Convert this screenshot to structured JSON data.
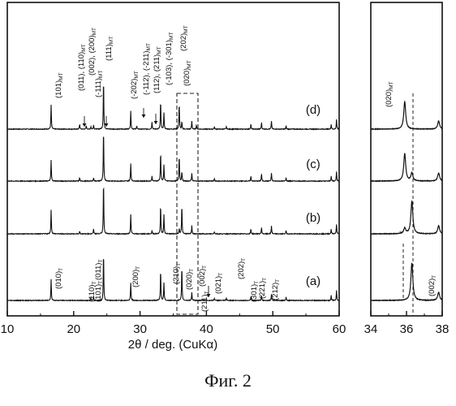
{
  "caption": "Фиг. 2",
  "chart_data": [
    {
      "type": "line",
      "panel": "main",
      "xlabel": "2θ / deg. (CuKα)",
      "ylabel": "",
      "xlim": [
        10,
        60
      ],
      "xticks": [
        10,
        20,
        30,
        40,
        50,
        60
      ],
      "grid": false,
      "series": [
        {
          "name": "(d)",
          "peaks": [
            {
              "x": 16.6,
              "h": 30
            },
            {
              "x": 20.9,
              "h": 6
            },
            {
              "x": 21.9,
              "h": 4
            },
            {
              "x": 22.6,
              "h": 3
            },
            {
              "x": 23.0,
              "h": 5
            },
            {
              "x": 24.5,
              "h": 62
            },
            {
              "x": 28.6,
              "h": 22
            },
            {
              "x": 29.5,
              "h": 4
            },
            {
              "x": 31.8,
              "h": 9
            },
            {
              "x": 33.1,
              "h": 35
            },
            {
              "x": 33.6,
              "h": 20
            },
            {
              "x": 35.9,
              "h": 32
            },
            {
              "x": 36.3,
              "h": 9
            },
            {
              "x": 37.8,
              "h": 10
            },
            {
              "x": 38.5,
              "h": 5
            },
            {
              "x": 41.2,
              "h": 3
            },
            {
              "x": 43.0,
              "h": 3
            },
            {
              "x": 46.7,
              "h": 6
            },
            {
              "x": 48.3,
              "h": 8
            },
            {
              "x": 49.8,
              "h": 10
            },
            {
              "x": 52.0,
              "h": 4
            },
            {
              "x": 58.8,
              "h": 6
            },
            {
              "x": 59.6,
              "h": 12
            }
          ]
        },
        {
          "name": "(c)",
          "peaks": [
            {
              "x": 16.6,
              "h": 26
            },
            {
              "x": 20.9,
              "h": 4
            },
            {
              "x": 23.0,
              "h": 4
            },
            {
              "x": 24.5,
              "h": 64
            },
            {
              "x": 28.6,
              "h": 22
            },
            {
              "x": 31.8,
              "h": 6
            },
            {
              "x": 33.1,
              "h": 36
            },
            {
              "x": 33.6,
              "h": 20
            },
            {
              "x": 35.9,
              "h": 32
            },
            {
              "x": 36.3,
              "h": 12
            },
            {
              "x": 37.8,
              "h": 10
            },
            {
              "x": 41.2,
              "h": 3
            },
            {
              "x": 46.7,
              "h": 6
            },
            {
              "x": 48.3,
              "h": 9
            },
            {
              "x": 49.8,
              "h": 10
            },
            {
              "x": 52.0,
              "h": 4
            },
            {
              "x": 58.8,
              "h": 6
            },
            {
              "x": 59.6,
              "h": 12
            }
          ]
        },
        {
          "name": "(b)",
          "peaks": [
            {
              "x": 16.6,
              "h": 30
            },
            {
              "x": 20.9,
              "h": 3
            },
            {
              "x": 23.0,
              "h": 6
            },
            {
              "x": 24.5,
              "h": 66
            },
            {
              "x": 28.6,
              "h": 24
            },
            {
              "x": 31.8,
              "h": 4
            },
            {
              "x": 33.1,
              "h": 36
            },
            {
              "x": 33.6,
              "h": 24
            },
            {
              "x": 35.9,
              "h": 6
            },
            {
              "x": 36.3,
              "h": 36
            },
            {
              "x": 37.8,
              "h": 10
            },
            {
              "x": 41.2,
              "h": 3
            },
            {
              "x": 46.7,
              "h": 6
            },
            {
              "x": 48.3,
              "h": 8
            },
            {
              "x": 49.8,
              "h": 10
            },
            {
              "x": 52.0,
              "h": 4
            },
            {
              "x": 58.8,
              "h": 6
            },
            {
              "x": 59.6,
              "h": 12
            }
          ]
        },
        {
          "name": "(a)",
          "peaks": [
            {
              "x": 16.6,
              "h": 26
            },
            {
              "x": 22.6,
              "h": 3
            },
            {
              "x": 23.0,
              "h": 4
            },
            {
              "x": 24.5,
              "h": 60
            },
            {
              "x": 28.6,
              "h": 22
            },
            {
              "x": 33.1,
              "h": 38
            },
            {
              "x": 33.6,
              "h": 22
            },
            {
              "x": 36.3,
              "h": 42
            },
            {
              "x": 37.8,
              "h": 10
            },
            {
              "x": 41.2,
              "h": 3
            },
            {
              "x": 43.0,
              "h": 3
            },
            {
              "x": 46.7,
              "h": 5
            },
            {
              "x": 48.3,
              "h": 6
            },
            {
              "x": 49.8,
              "h": 8
            },
            {
              "x": 52.0,
              "h": 4
            },
            {
              "x": 58.8,
              "h": 6
            },
            {
              "x": 59.6,
              "h": 12
            }
          ]
        }
      ],
      "annotations": [
        {
          "main": "(101)",
          "sub": "MT",
          "x": 16.6
        },
        {
          "main": "(011), (110)",
          "sub": "MT",
          "x": 20.9
        },
        {
          "main": "(002), (200)",
          "sub": "MT",
          "x": 22.6
        },
        {
          "main": "(-111)",
          "sub": "MT",
          "x": 23.0
        },
        {
          "main": "(111)",
          "sub": "MT",
          "x": 24.5
        },
        {
          "main": "(-202)",
          "sub": "MT",
          "x": 28.6
        },
        {
          "main": "(-112), (-211)",
          "sub": "MT",
          "x": 29.5
        },
        {
          "main": "(112), (211)",
          "sub": "MT",
          "x": 31.8
        },
        {
          "main": "(-103), (-301)",
          "sub": "MT",
          "x": 33.1
        },
        {
          "main": "(202)",
          "sub": "MT",
          "x": 33.6
        },
        {
          "main": "(020)",
          "sub": "MT",
          "x": 35.9
        },
        {
          "main": "(010)",
          "sub": "T",
          "x": 16.6
        },
        {
          "main": "(110)",
          "sub": "T",
          "x": 21.9
        },
        {
          "main": "(101)",
          "sub": "T",
          "x": 22.6
        },
        {
          "main": "(011)",
          "sub": "T",
          "x": 24.5
        },
        {
          "main": "(200)",
          "sub": "T",
          "x": 28.6
        },
        {
          "main": "(210)",
          "sub": "T",
          "x": 33.1
        },
        {
          "main": "(020)",
          "sub": "T",
          "x": 33.6
        },
        {
          "main": "(002)",
          "sub": "T",
          "x": 36.3
        },
        {
          "main": "(211)",
          "sub": "T",
          "x": 37.8
        },
        {
          "main": "(021)",
          "sub": "T",
          "x": 41.2
        },
        {
          "main": "(202)",
          "sub": "T",
          "x": 45.7
        },
        {
          "main": "(301)",
          "sub": "T",
          "x": 46.7
        },
        {
          "main": "(221)",
          "sub": "T",
          "x": 48.3
        },
        {
          "main": "(212)",
          "sub": "T",
          "x": 49.8
        }
      ]
    },
    {
      "type": "line",
      "panel": "zoom",
      "xlim": [
        34,
        38
      ],
      "xticks": [
        34,
        36,
        38
      ],
      "grid": false,
      "series": [
        {
          "name": "(d)",
          "peaks": [
            {
              "x": 35.9,
              "h": 34
            },
            {
              "x": 37.8,
              "h": 10
            }
          ]
        },
        {
          "name": "(c)",
          "peaks": [
            {
              "x": 35.9,
              "h": 34
            },
            {
              "x": 36.3,
              "h": 10
            },
            {
              "x": 37.8,
              "h": 10
            }
          ]
        },
        {
          "name": "(b)",
          "peaks": [
            {
              "x": 35.9,
              "h": 7
            },
            {
              "x": 36.3,
              "h": 40
            },
            {
              "x": 37.8,
              "h": 10
            }
          ]
        },
        {
          "name": "(a)",
          "peaks": [
            {
              "x": 36.3,
              "h": 46
            },
            {
              "x": 37.8,
              "h": 10
            }
          ]
        }
      ],
      "annotations": [
        {
          "main": "(020)",
          "sub": "MT",
          "x": 35.9
        },
        {
          "main": "(002)",
          "sub": "T",
          "x": 36.3
        },
        {
          "main": "*",
          "sub": "",
          "x": 35.6
        }
      ]
    }
  ]
}
